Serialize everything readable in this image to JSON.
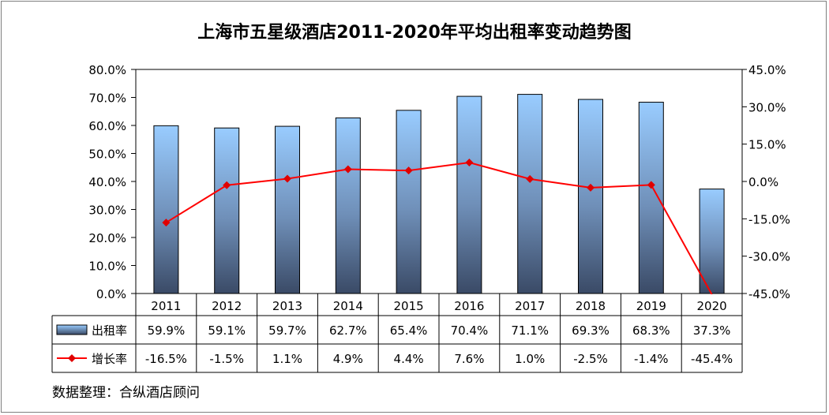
{
  "chart_data": {
    "type": "bar",
    "title": "上海市五星级酒店2011-2020年平均出租率变动趋势图",
    "categories": [
      "2011",
      "2012",
      "2013",
      "2014",
      "2015",
      "2016",
      "2017",
      "2018",
      "2019",
      "2020"
    ],
    "series": [
      {
        "name": "出租率",
        "type": "bar",
        "axis": "left",
        "values": [
          59.9,
          59.1,
          59.7,
          62.7,
          65.4,
          70.4,
          71.1,
          69.3,
          68.3,
          37.3
        ],
        "labels": [
          "59.9%",
          "59.1%",
          "59.7%",
          "62.7%",
          "65.4%",
          "70.4%",
          "71.1%",
          "69.3%",
          "68.3%",
          "37.3%"
        ]
      },
      {
        "name": "增长率",
        "type": "line",
        "axis": "right",
        "values": [
          -16.5,
          -1.5,
          1.1,
          4.9,
          4.4,
          7.6,
          1.0,
          -2.5,
          -1.4,
          -45.4
        ],
        "labels": [
          "-16.5%",
          "-1.5%",
          "1.1%",
          "4.9%",
          "4.4%",
          "7.6%",
          "1.0%",
          "-2.5%",
          "-1.4%",
          "-45.4%"
        ]
      }
    ],
    "y_left": {
      "range": [
        0,
        80
      ],
      "ticks": [
        0,
        10,
        20,
        30,
        40,
        50,
        60,
        70,
        80
      ],
      "tick_labels": [
        "0.0%",
        "10.0%",
        "20.0%",
        "30.0%",
        "40.0%",
        "50.0%",
        "60.0%",
        "70.0%",
        "80.0%"
      ]
    },
    "y_right": {
      "range": [
        -45,
        45
      ],
      "ticks": [
        -45,
        -30,
        -15,
        0,
        15,
        30,
        45
      ],
      "tick_labels": [
        "-45.0%",
        "-30.0%",
        "-15.0%",
        "0.0%",
        "15.0%",
        "30.0%",
        "45.0%"
      ]
    },
    "grid": false,
    "legend": "data-table"
  },
  "source_note": "数据整理：合纵酒店顾问",
  "colors": {
    "bar_top": "#99ccff",
    "bar_bottom": "#3a4a66",
    "bar_stroke": "#000000",
    "line": "#ff0000",
    "marker": "#e00000"
  }
}
